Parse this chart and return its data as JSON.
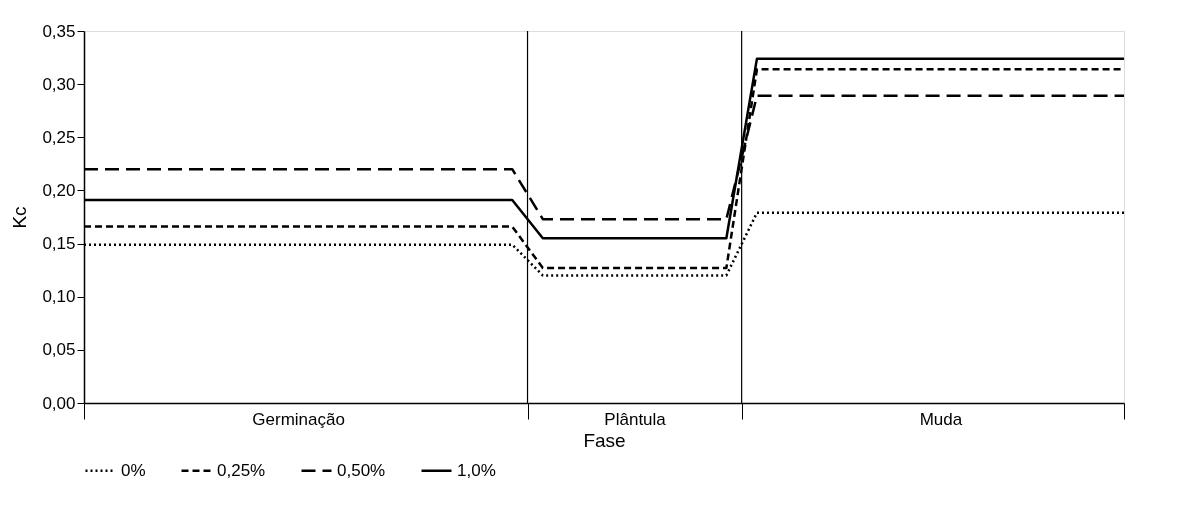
{
  "chart_data": {
    "type": "line",
    "xlabel": "Fase",
    "ylabel": "Kc",
    "categories": [
      null,
      null,
      null,
      null,
      null,
      null,
      null,
      "Germinação",
      null,
      null,
      null,
      null,
      null,
      null,
      null,
      null,
      null,
      null,
      "Plântula",
      null,
      null,
      null,
      null,
      null,
      null,
      null,
      null,
      null,
      "Muda",
      null,
      null,
      null,
      null,
      null,
      null
    ],
    "ylim": [
      0,
      0.35
    ],
    "yticks": [
      {
        "value": 0,
        "label": "0,00"
      },
      {
        "value": 0.05,
        "label": "0,05"
      },
      {
        "value": 0.1,
        "label": "0,10"
      },
      {
        "value": 0.15,
        "label": "0,15"
      },
      {
        "value": 0.2,
        "label": "0,20"
      },
      {
        "value": 0.25,
        "label": "0,25"
      },
      {
        "value": 0.3,
        "label": "0,30"
      },
      {
        "value": 0.35,
        "label": "0,35"
      }
    ],
    "grid": false,
    "legend": "bottom",
    "marker": "none",
    "series": [
      {
        "name": "0%",
        "color": "#000000",
        "line_style": "dotted",
        "values": [
          0.149,
          0.149,
          0.149,
          0.149,
          0.149,
          0.149,
          0.149,
          0.149,
          0.149,
          0.149,
          0.149,
          0.149,
          0.149,
          0.149,
          0.149,
          0.12,
          0.12,
          0.12,
          0.12,
          0.12,
          0.12,
          0.12,
          0.179,
          0.179,
          0.179,
          0.179,
          0.179,
          0.179,
          0.179,
          0.179,
          0.179,
          0.179,
          0.179,
          0.179,
          0.179
        ]
      },
      {
        "name": "0,25%",
        "color": "#000000",
        "line_style": "dashed",
        "values": [
          0.166,
          0.166,
          0.166,
          0.166,
          0.166,
          0.166,
          0.166,
          0.166,
          0.166,
          0.166,
          0.166,
          0.166,
          0.166,
          0.166,
          0.166,
          0.127,
          0.127,
          0.127,
          0.127,
          0.127,
          0.127,
          0.127,
          0.314,
          0.314,
          0.314,
          0.314,
          0.314,
          0.314,
          0.314,
          0.314,
          0.314,
          0.314,
          0.314,
          0.314,
          0.314
        ]
      },
      {
        "name": "0,50%",
        "color": "#000000",
        "line_style": "dashed",
        "values": [
          0.22,
          0.22,
          0.22,
          0.22,
          0.22,
          0.22,
          0.22,
          0.22,
          0.22,
          0.22,
          0.22,
          0.22,
          0.22,
          0.22,
          0.22,
          0.173,
          0.173,
          0.173,
          0.173,
          0.173,
          0.173,
          0.173,
          0.289,
          0.289,
          0.289,
          0.289,
          0.289,
          0.289,
          0.289,
          0.289,
          0.289,
          0.289,
          0.289,
          0.289,
          0.289
        ]
      },
      {
        "name": "1,0%",
        "color": "#000000",
        "line_style": "solid",
        "values": [
          0.191,
          0.191,
          0.191,
          0.191,
          0.191,
          0.191,
          0.191,
          0.191,
          0.191,
          0.191,
          0.191,
          0.191,
          0.191,
          0.191,
          0.191,
          0.155,
          0.155,
          0.155,
          0.155,
          0.155,
          0.155,
          0.155,
          0.324,
          0.324,
          0.324,
          0.324,
          0.324,
          0.324,
          0.324,
          0.324,
          0.324,
          0.324,
          0.324,
          0.324,
          0.324
        ]
      }
    ]
  }
}
